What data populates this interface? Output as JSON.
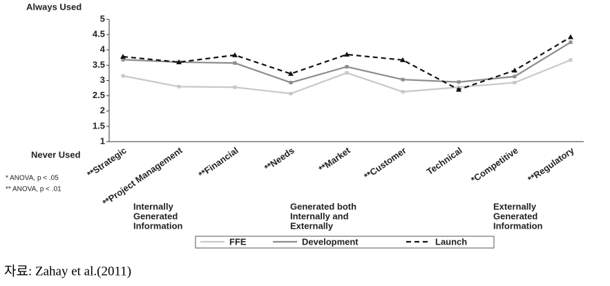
{
  "chart_data": {
    "type": "line",
    "y_top_label": "Always Used",
    "y_bottom_label": "Never Used",
    "categories": [
      "**Strategic",
      "**Project Management",
      "**Financial",
      "**Needs",
      "**Market",
      "**Customer",
      "Technical",
      "*Competitive",
      "**Regulatory"
    ],
    "series": [
      {
        "name": "FFE",
        "color": "#c8c8c8",
        "values": [
          3.15,
          2.8,
          2.78,
          2.57,
          3.25,
          2.63,
          2.78,
          2.93,
          3.67
        ]
      },
      {
        "name": "Development",
        "color": "#8c8c8c",
        "values": [
          3.68,
          3.6,
          3.57,
          2.93,
          3.45,
          3.03,
          2.95,
          3.13,
          4.25
        ]
      },
      {
        "name": "Launch",
        "color": "#111111",
        "dashed": true,
        "values": [
          3.78,
          3.6,
          3.83,
          3.22,
          3.85,
          3.67,
          2.7,
          3.33,
          4.42
        ]
      }
    ],
    "ylim": [
      1,
      5
    ],
    "yticks": [
      1,
      1.5,
      2,
      2.5,
      3,
      3.5,
      4,
      4.5,
      5
    ],
    "grid": false,
    "legend": "bottom",
    "notes": [
      "* ANOVA, p < .05",
      "** ANOVA, p < .01"
    ],
    "groups": [
      [
        "Internally",
        "Generated",
        "Information"
      ],
      [
        "Generated both",
        "Internally and",
        "Externally"
      ],
      [
        "Externally",
        "Generated",
        "Information"
      ]
    ],
    "source": "자료: Zahay et al.(2011)"
  }
}
